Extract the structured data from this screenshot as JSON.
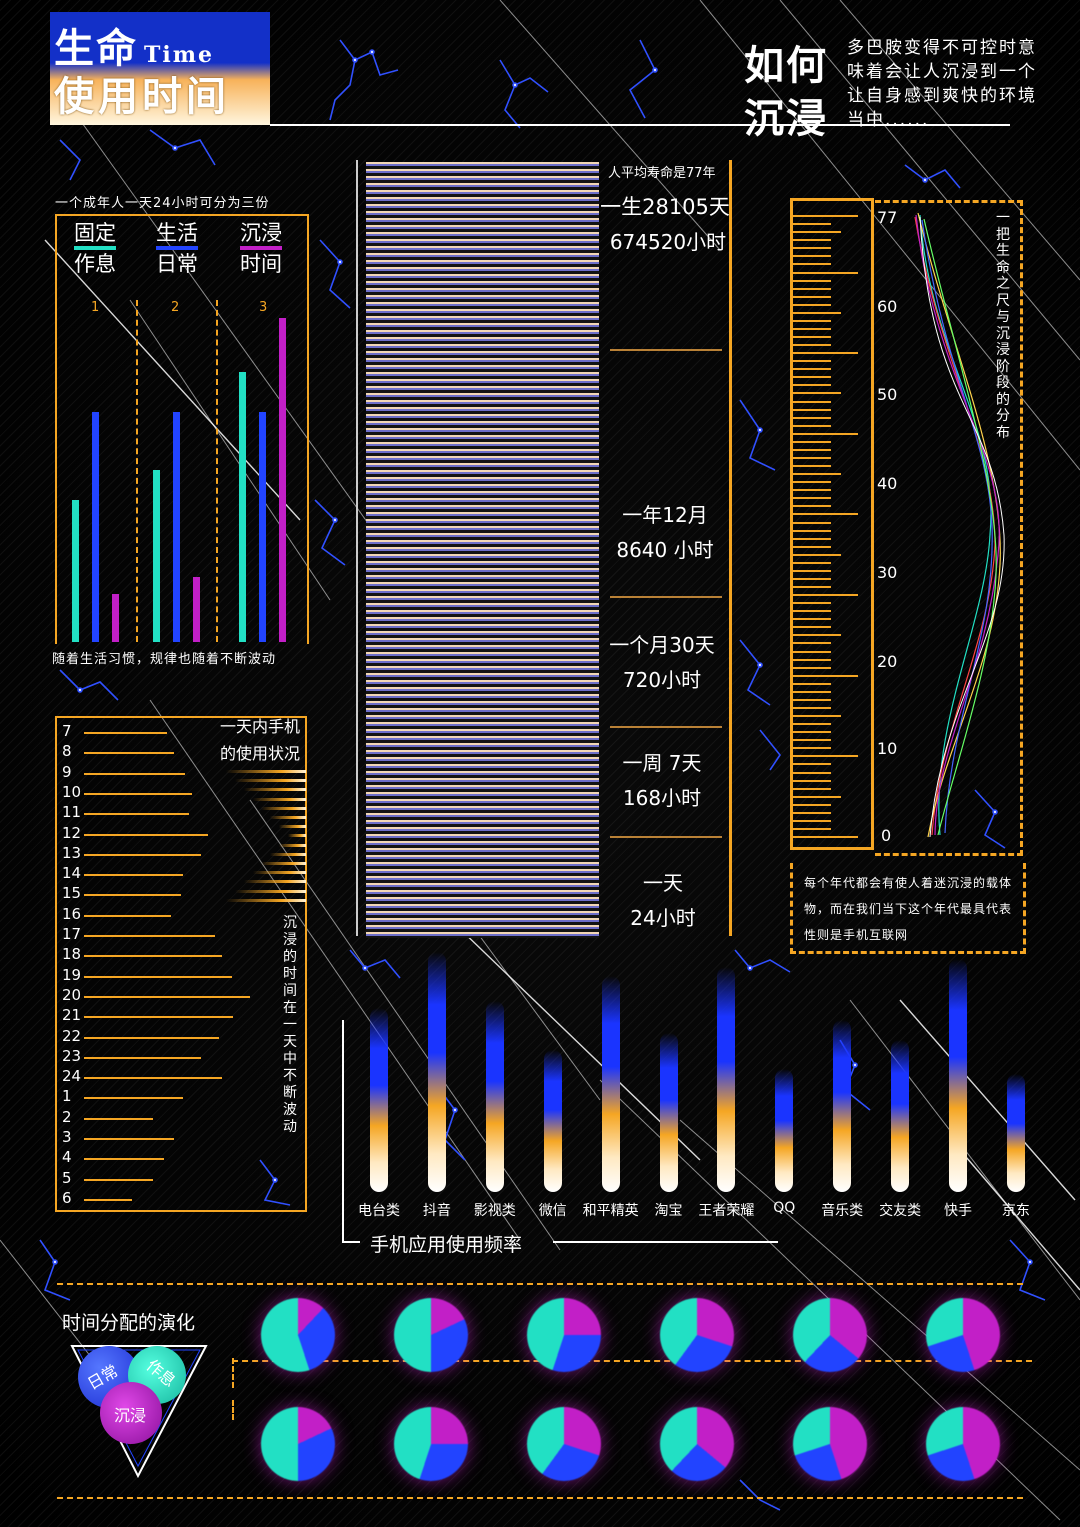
{
  "header": {
    "title_cn_1": "生命",
    "title_en": "Time",
    "title_cn_2": "使用时间",
    "question_1": "如何",
    "question_2": "沉浸",
    "question_desc": "多巴胺变得不可控时意味着会让人沉浸到一个让自身感到爽快的环境当中......"
  },
  "day_split": {
    "caption": "一个成年人一天24小时可分为三份",
    "groups": [
      {
        "label_1": "固定",
        "label_2": "作息",
        "num": "1",
        "color": "#22e0c4"
      },
      {
        "label_1": "生活",
        "label_2": "日常",
        "num": "2",
        "color": "#2244ff"
      },
      {
        "label_1": "沉浸",
        "label_2": "时间",
        "num": "3",
        "color": "#c21fc7"
      }
    ],
    "footer": "随着生活习惯，规律也随着不断波动"
  },
  "phone_usage": {
    "title_1": "一天内手机",
    "title_2": "的使用状况",
    "hours": [
      "7",
      "8",
      "9",
      "10",
      "11",
      "12",
      "13",
      "14",
      "15",
      "16",
      "17",
      "18",
      "19",
      "20",
      "21",
      "22",
      "23",
      "24",
      "1",
      "2",
      "3",
      "4",
      "5",
      "6"
    ],
    "levels": [
      0.6,
      0.65,
      0.73,
      0.78,
      0.76,
      0.9,
      0.85,
      0.72,
      0.7,
      0.63,
      0.95,
      1.0,
      1.07,
      1.2,
      1.08,
      0.98,
      0.85,
      1.0,
      0.72,
      0.5,
      0.65,
      0.58,
      0.5,
      0.35
    ],
    "vertical_note": "沉浸的时间在一天中不断波动"
  },
  "life_scale": {
    "avg_life": "人平均寿命是77年",
    "life_days": "一生28105天",
    "life_hours": "674520小时",
    "year_1": "一年12月",
    "year_2": "8640 小时",
    "month_1": "一个月30天",
    "month_2": "720小时",
    "week_1": "一周 7天",
    "week_2": "168小时",
    "day_1": "一天",
    "day_2": "24小时"
  },
  "ruler": {
    "labels": [
      "77",
      "60",
      "50",
      "40",
      "30",
      "20",
      "10",
      "0"
    ],
    "vertical_note": "一把生命之尺与沉浸阶段的分布",
    "era_note": "每个年代都会有使人着迷沉浸的载体物，而在我们当下这个年代最具代表性则是手机互联网"
  },
  "apps": {
    "title": "手机应用使用频率",
    "items": [
      {
        "name": "电台类",
        "value": 0.75
      },
      {
        "name": "抖音",
        "value": 0.98
      },
      {
        "name": "影视类",
        "value": 0.78
      },
      {
        "name": "微信",
        "value": 0.58
      },
      {
        "name": "和平精英",
        "value": 0.88
      },
      {
        "name": "淘宝",
        "value": 0.65
      },
      {
        "name": "王者荣耀",
        "value": 0.92
      },
      {
        "name": "QQ",
        "value": 0.5
      },
      {
        "name": "音乐类",
        "value": 0.7
      },
      {
        "name": "交友类",
        "value": 0.62
      },
      {
        "name": "快手",
        "value": 0.95
      },
      {
        "name": "京东",
        "value": 0.48
      }
    ]
  },
  "evolution": {
    "title": "时间分配的演化",
    "circle_1": "日常",
    "circle_2": "作息",
    "circle_3": "沉浸"
  },
  "colors": {
    "accent": "#f5a623",
    "cyan": "#22e0c4",
    "blue": "#2244ff",
    "magenta": "#c21fc7",
    "cream": "#ffe9c2"
  }
}
